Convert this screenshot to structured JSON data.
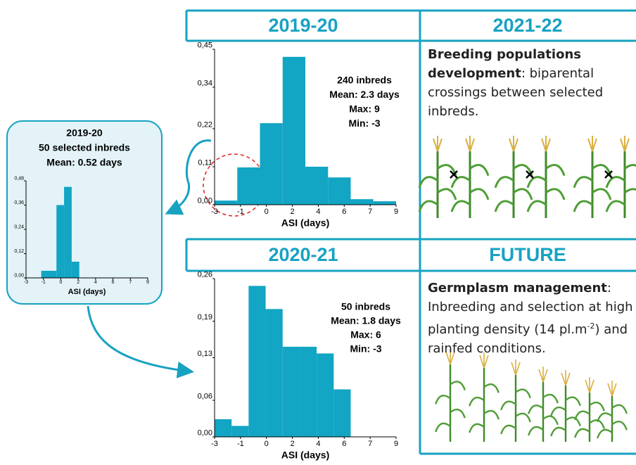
{
  "headers": {
    "top_left": "2019-20",
    "top_right": "2021-22",
    "bottom_left": "2020-21",
    "bottom_right": "FUTURE"
  },
  "texts": {
    "breeding": {
      "bold": "Breeding populations development",
      "rest": ": biparental crossings between selected inbreds."
    },
    "future": {
      "bold": "Germplasm management",
      "rest": ": Inbreeding and selection at high planting density (14 pl.m",
      "sup": "-2",
      "tail": ") and rainfed conditions."
    }
  },
  "chart_data": [
    {
      "type": "histogram",
      "xlabel": "ASI (days)",
      "color": "#12a5c4",
      "annotations": [
        "240 inbreds",
        "Mean: 2.3 days",
        "Max: 9",
        "Min: -3"
      ],
      "bins": [
        -3,
        -1.5,
        0,
        1.5,
        3,
        4.5,
        6,
        7.5,
        9
      ],
      "values": [
        0.012,
        0.108,
        0.236,
        0.428,
        0.11,
        0.079,
        0.016,
        0.01
      ],
      "xlim": [
        -3,
        9
      ],
      "xticks": [
        -3,
        {
          "value": -1.286,
          "label": "-1"
        },
        {
          "value": 0.429,
          "label": "0"
        },
        {
          "value": 2.143,
          "label": "2"
        },
        {
          "value": 3.857,
          "label": "4"
        },
        {
          "value": 5.571,
          "label": "6"
        },
        {
          "value": 7.286,
          "label": "7"
        },
        9
      ],
      "ylim": [
        0,
        0.45
      ],
      "yticks": [
        {
          "value": 0,
          "label": "0,00"
        },
        {
          "value": 0.11,
          "label": "0,11"
        },
        {
          "value": 0.22,
          "label": "0,22"
        },
        {
          "value": 0.34,
          "label": "0,34"
        },
        {
          "value": 0.45,
          "label": "0,45"
        }
      ]
    },
    {
      "type": "histogram",
      "xlabel": "ASI (days)",
      "color": "#12a5c4",
      "annotations": [
        "2019-20",
        "50 selected inbreds",
        "Mean: 0.52 days"
      ],
      "bins": [
        -1.5,
        0,
        0.75,
        1.5,
        2.25
      ],
      "values": [
        0.035,
        0.36,
        0.45,
        0.08
      ],
      "xlim": [
        -3,
        9
      ],
      "xticks": [
        -3,
        {
          "value": -1.286,
          "label": "-1"
        },
        {
          "value": 0.429,
          "label": "0"
        },
        {
          "value": 2.143,
          "label": "2"
        },
        {
          "value": 3.857,
          "label": "4"
        },
        {
          "value": 5.571,
          "label": "6"
        },
        {
          "value": 7.286,
          "label": "7"
        },
        9
      ],
      "ylim": [
        0,
        0.48
      ],
      "yticks": [
        {
          "value": 0,
          "label": "0,00"
        },
        {
          "value": 0.12,
          "label": "0,12"
        },
        {
          "value": 0.24,
          "label": "0,24"
        },
        {
          "value": 0.36,
          "label": "0,36"
        },
        {
          "value": 0.48,
          "label": "0,48"
        }
      ]
    },
    {
      "type": "histogram",
      "xlabel": "ASI (days)",
      "color": "#12a5c4",
      "annotations": [
        "50 inbreds",
        "Mean: 1.8 days",
        "Max: 6",
        "Min: -3"
      ],
      "bins": [
        -3,
        -1.875,
        -0.75,
        0.375,
        1.5,
        2.625,
        3.75,
        4.875,
        6
      ],
      "values": [
        0.029,
        0.018,
        0.248,
        0.21,
        0.148,
        0.148,
        0.137,
        0.078
      ],
      "xlim": [
        -3,
        9
      ],
      "xticks": [
        -3,
        {
          "value": -1.286,
          "label": "-1"
        },
        {
          "value": 0.429,
          "label": "0"
        },
        {
          "value": 2.143,
          "label": "2"
        },
        {
          "value": 3.857,
          "label": "4"
        },
        {
          "value": 5.571,
          "label": "6"
        },
        {
          "value": 7.286,
          "label": "7"
        },
        9
      ],
      "ylim": [
        0,
        0.26
      ],
      "yticks": [
        {
          "value": 0,
          "label": "0,00"
        },
        {
          "value": 0.06,
          "label": "0,06"
        },
        {
          "value": 0.13,
          "label": "0,13"
        },
        {
          "value": 0.19,
          "label": "0,19"
        },
        {
          "value": 0.26,
          "label": "0,26"
        }
      ]
    }
  ]
}
